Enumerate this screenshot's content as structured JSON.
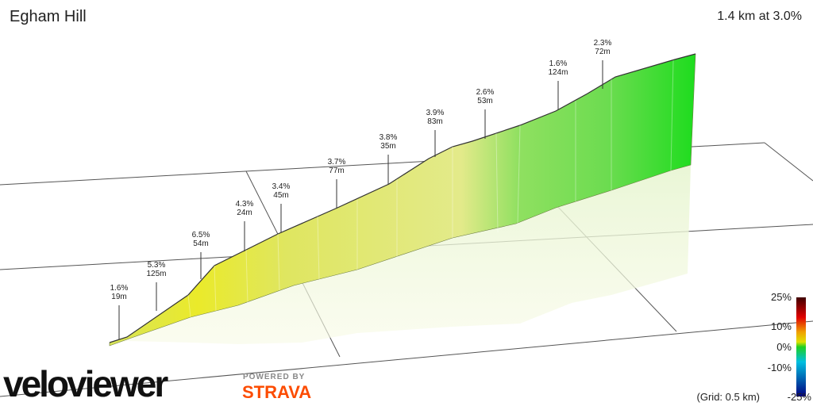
{
  "header": {
    "title": "Egham Hill",
    "summary": "1.4 km at 3.0%"
  },
  "annotations": [
    {
      "gradient": "1.6%",
      "length": "19m"
    },
    {
      "gradient": "5.3%",
      "length": "125m"
    },
    {
      "gradient": "6.5%",
      "length": "54m"
    },
    {
      "gradient": "4.3%",
      "length": "24m"
    },
    {
      "gradient": "3.4%",
      "length": "45m"
    },
    {
      "gradient": "3.7%",
      "length": "77m"
    },
    {
      "gradient": "3.8%",
      "length": "35m"
    },
    {
      "gradient": "3.9%",
      "length": "83m"
    },
    {
      "gradient": "2.6%",
      "length": "53m"
    },
    {
      "gradient": "1.6%",
      "length": "124m"
    },
    {
      "gradient": "2.3%",
      "length": "72m"
    }
  ],
  "legend": {
    "labels": [
      "25%",
      "10%",
      "0%",
      "-10%",
      "-25%"
    ],
    "grid_note": "(Grid: 0.5 km)"
  },
  "branding": {
    "logo": "veloviewer",
    "powered_by": "POWERED BY",
    "partner": "STRAVA"
  }
}
